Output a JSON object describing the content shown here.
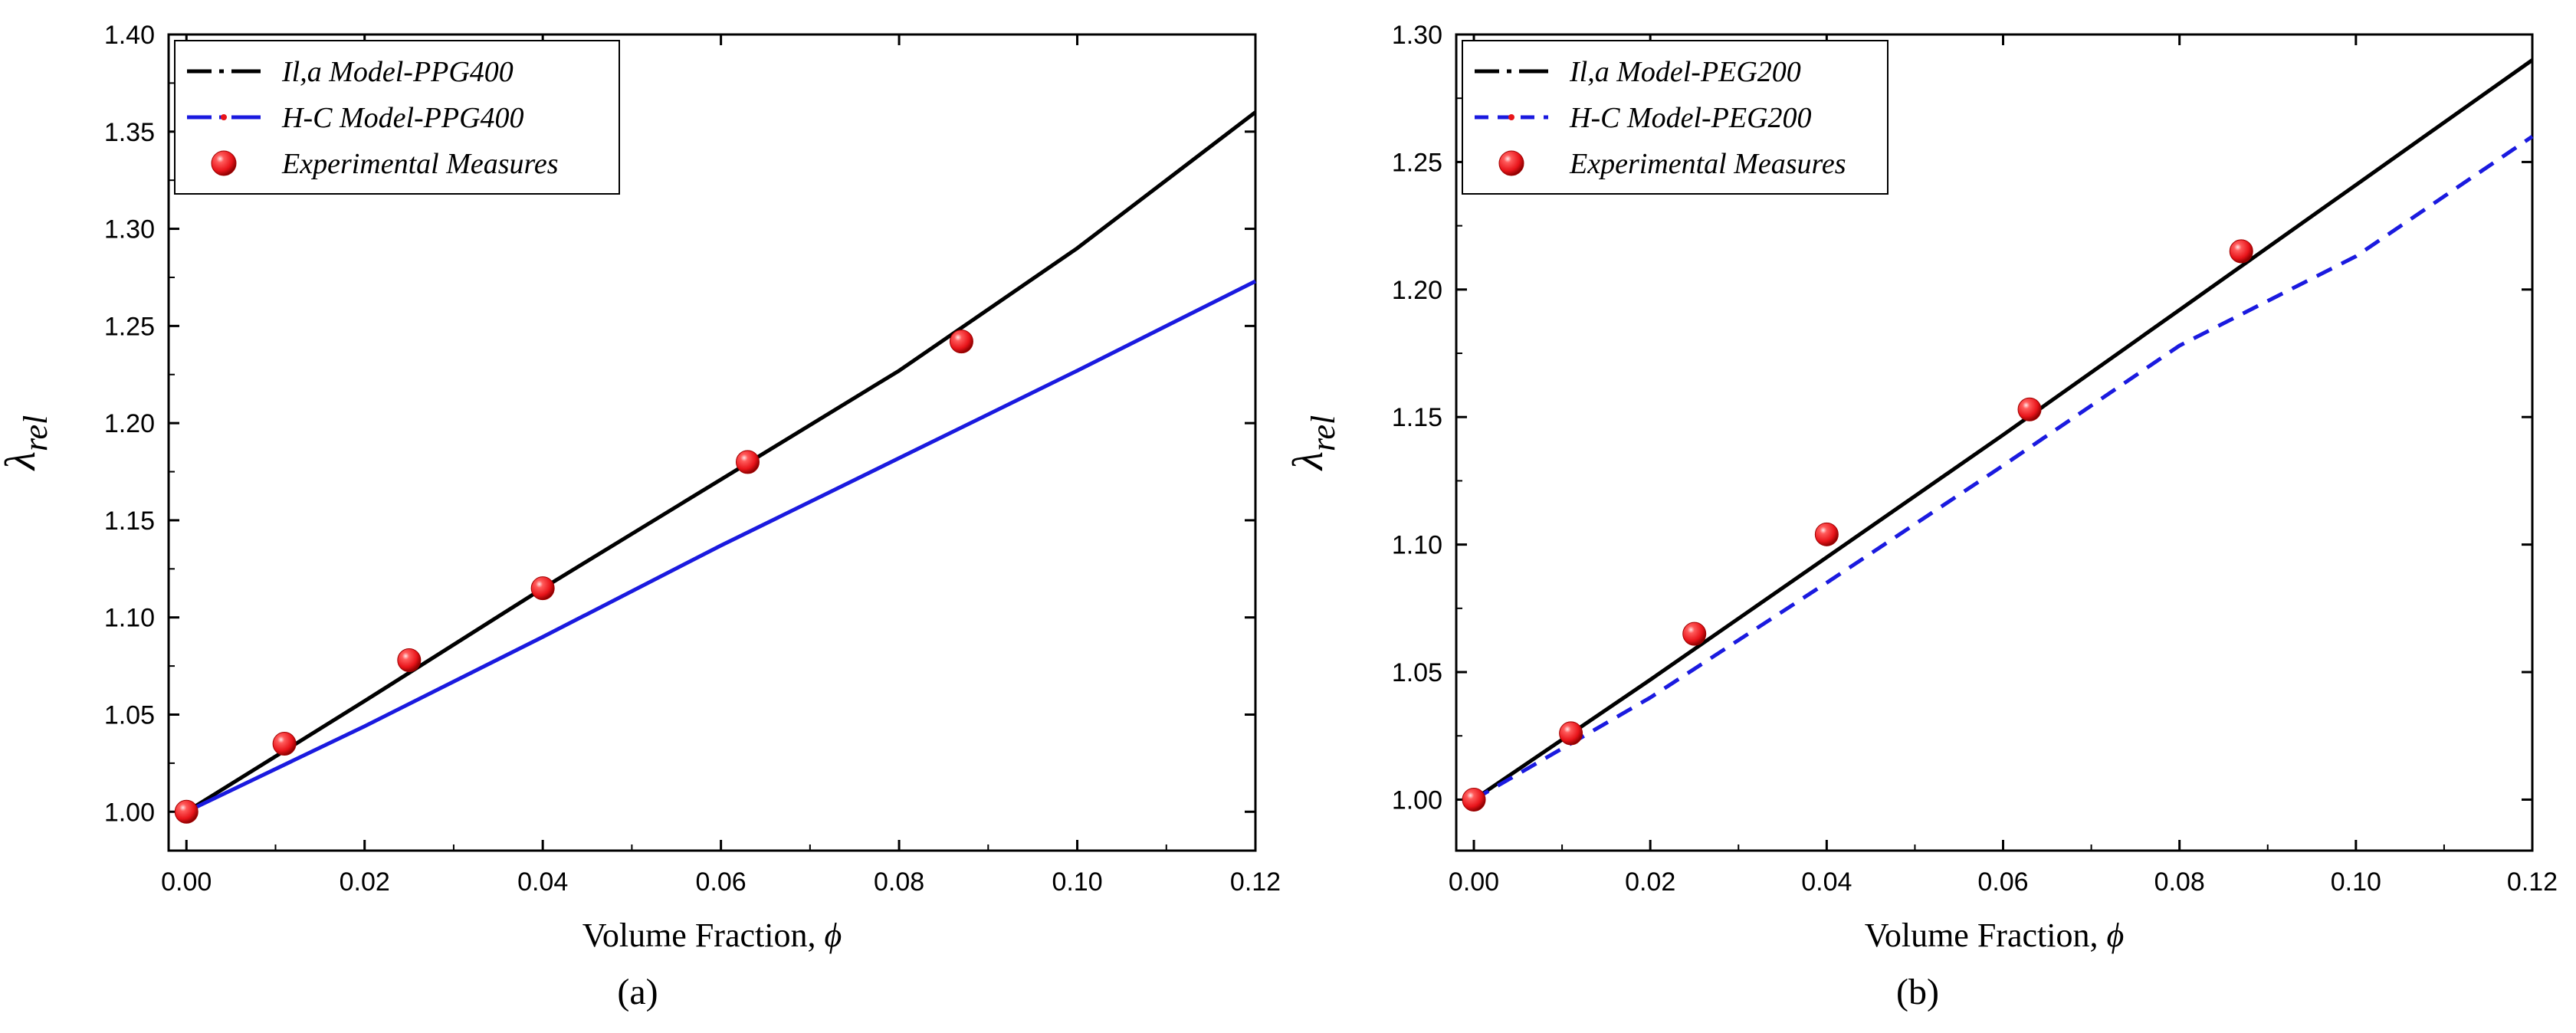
{
  "chart_data": [
    {
      "type": "line",
      "panel_label": "(a)",
      "xlabel": "Volume Fraction,",
      "xlabel_symbol": "ϕ",
      "ylabel": "λ",
      "ylabel_sub": "rel",
      "xlim": [
        -0.002,
        0.12
      ],
      "ylim": [
        0.98,
        1.4
      ],
      "xticks": [
        0.0,
        0.02,
        0.04,
        0.06,
        0.08,
        0.1,
        0.12
      ],
      "xtick_labels": [
        "0.00",
        "0.02",
        "0.04",
        "0.06",
        "0.08",
        "0.10",
        "0.12"
      ],
      "yticks": [
        1.0,
        1.05,
        1.1,
        1.15,
        1.2,
        1.25,
        1.3,
        1.35,
        1.4
      ],
      "ytick_labels": [
        "1.00",
        "1.05",
        "1.10",
        "1.15",
        "1.20",
        "1.25",
        "1.30",
        "1.35",
        "1.40"
      ],
      "legend_position": "top-left",
      "series": [
        {
          "name": "Il,a Model-PPG400",
          "kind": "line",
          "color": "#000000",
          "dash": "solid",
          "x": [
            0,
            0.02,
            0.04,
            0.06,
            0.08,
            0.1,
            0.12
          ],
          "y": [
            1.0,
            1.057,
            1.115,
            1.171,
            1.227,
            1.29,
            1.36
          ]
        },
        {
          "name": "H-C Model-PPG400",
          "kind": "line",
          "color": "#1a1adf",
          "dash": "solid",
          "x": [
            0,
            0.02,
            0.04,
            0.06,
            0.08,
            0.1,
            0.12
          ],
          "y": [
            1.0,
            1.044,
            1.09,
            1.137,
            1.182,
            1.227,
            1.273
          ]
        },
        {
          "name": "Experimental Measures",
          "kind": "scatter",
          "color": "#e8141a",
          "x": [
            0,
            0.011,
            0.025,
            0.04,
            0.063,
            0.087
          ],
          "y": [
            1.0,
            1.035,
            1.078,
            1.115,
            1.18,
            1.242
          ]
        }
      ]
    },
    {
      "type": "line",
      "panel_label": "(b)",
      "xlabel": "Volume Fraction,",
      "xlabel_symbol": "ϕ",
      "ylabel": "λ",
      "ylabel_sub": "rel",
      "xlim": [
        -0.002,
        0.12
      ],
      "ylim": [
        0.98,
        1.3
      ],
      "xticks": [
        0.0,
        0.02,
        0.04,
        0.06,
        0.08,
        0.1,
        0.12
      ],
      "xtick_labels": [
        "0.00",
        "0.02",
        "0.04",
        "0.06",
        "0.08",
        "0.10",
        "0.12"
      ],
      "yticks": [
        1.0,
        1.05,
        1.1,
        1.15,
        1.2,
        1.25,
        1.3
      ],
      "ytick_labels": [
        "1.00",
        "1.05",
        "1.10",
        "1.15",
        "1.20",
        "1.25",
        "1.30"
      ],
      "legend_position": "top-left",
      "series": [
        {
          "name": "Il,a Model-PEG200",
          "kind": "line",
          "color": "#000000",
          "dash": "solid",
          "x": [
            0,
            0.02,
            0.04,
            0.06,
            0.08,
            0.1,
            0.12
          ],
          "y": [
            1.0,
            1.047,
            1.095,
            1.143,
            1.192,
            1.241,
            1.29
          ]
        },
        {
          "name": "H-C Model-PEG200",
          "kind": "line",
          "color": "#1a1adf",
          "dash": "dashed",
          "x": [
            0,
            0.02,
            0.04,
            0.06,
            0.08,
            0.1,
            0.12
          ],
          "y": [
            1.0,
            1.04,
            1.085,
            1.131,
            1.178,
            1.213,
            1.26
          ]
        },
        {
          "name": "Experimental Measures",
          "kind": "scatter",
          "color": "#e8141a",
          "x": [
            0,
            0.011,
            0.025,
            0.04,
            0.063,
            0.087
          ],
          "y": [
            1.0,
            1.026,
            1.065,
            1.104,
            1.153,
            1.215
          ]
        }
      ]
    }
  ]
}
